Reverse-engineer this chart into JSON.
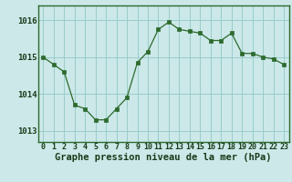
{
  "x": [
    0,
    1,
    2,
    3,
    4,
    5,
    6,
    7,
    8,
    9,
    10,
    11,
    12,
    13,
    14,
    15,
    16,
    17,
    18,
    19,
    20,
    21,
    22,
    23
  ],
  "y": [
    1015.0,
    1014.8,
    1014.6,
    1013.7,
    1013.6,
    1013.3,
    1013.3,
    1013.6,
    1013.9,
    1014.85,
    1015.15,
    1015.75,
    1015.95,
    1015.75,
    1015.7,
    1015.65,
    1015.45,
    1015.45,
    1015.65,
    1015.1,
    1015.1,
    1015.0,
    1014.95,
    1014.8
  ],
  "line_color": "#2d6a2d",
  "marker_color": "#2d6a2d",
  "bg_color": "#cce8e8",
  "grid_color": "#99cccc",
  "xlabel": "Graphe pression niveau de la mer (hPa)",
  "xlabel_color": "#1a3a1a",
  "tick_labels": [
    "0",
    "1",
    "2",
    "3",
    "4",
    "5",
    "6",
    "7",
    "8",
    "9",
    "10",
    "11",
    "12",
    "13",
    "14",
    "15",
    "16",
    "17",
    "18",
    "19",
    "20",
    "21",
    "22",
    "23"
  ],
  "yticks": [
    1013,
    1014,
    1015,
    1016
  ],
  "ylim": [
    1012.7,
    1016.4
  ],
  "xlim": [
    -0.5,
    23.5
  ],
  "font_size_xlabel": 7.5,
  "font_size_yticks": 6.5,
  "font_size_xticks": 6.0
}
